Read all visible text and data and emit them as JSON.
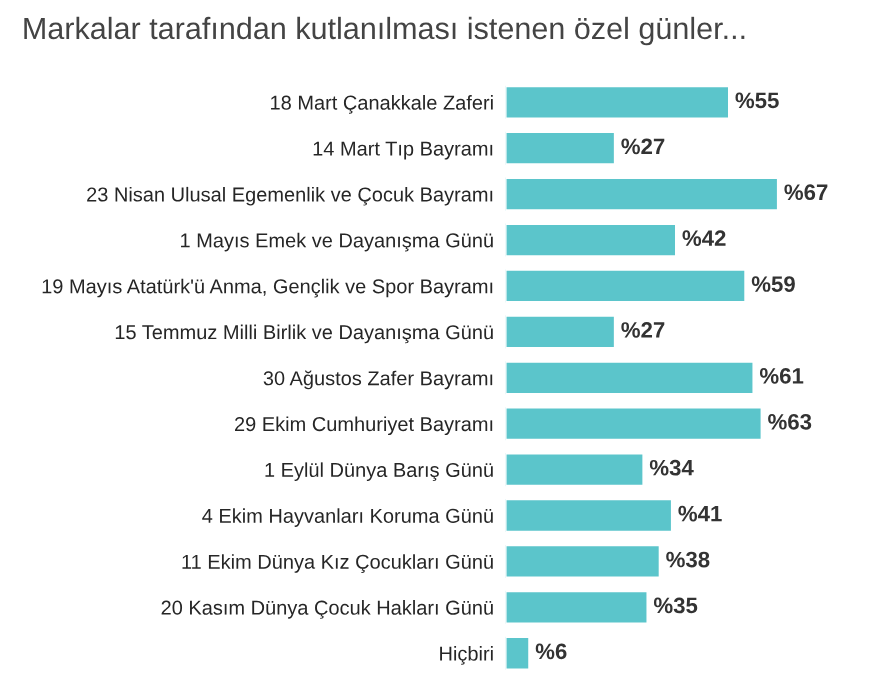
{
  "chart_data": {
    "type": "bar",
    "orientation": "horizontal",
    "title": "Markalar tarafından kutlanılması istenen özel günler...",
    "categories": [
      "18 Mart Çanakkale Zaferi",
      "14 Mart Tıp Bayramı",
      "23 Nisan Ulusal Egemenlik ve Çocuk Bayramı",
      "1 Mayıs Emek ve Dayanışma Günü",
      "19 Mayıs Atatürk'ü Anma, Gençlik ve Spor Bayramı",
      "15 Temmuz Milli Birlik ve Dayanışma Günü",
      "30 Ağustos Zafer Bayramı",
      "29 Ekim Cumhuriyet Bayramı",
      "1 Eylül Dünya Barış Günü",
      "4 Ekim Hayvanları Koruma Günü",
      "11 Ekim Dünya Kız Çocukları Günü",
      "20 Kasım Dünya Çocuk Hakları Günü",
      "Hiçbiri"
    ],
    "values": [
      55,
      27,
      67,
      42,
      59,
      27,
      61,
      63,
      34,
      41,
      38,
      35,
      6
    ],
    "value_labels": [
      "%55",
      "%27",
      "%67",
      "%42",
      "%59",
      "%27",
      "%61",
      "%63",
      "%34",
      "%41",
      "%38",
      "%35",
      "%6"
    ],
    "color": "#5bc5cb"
  }
}
